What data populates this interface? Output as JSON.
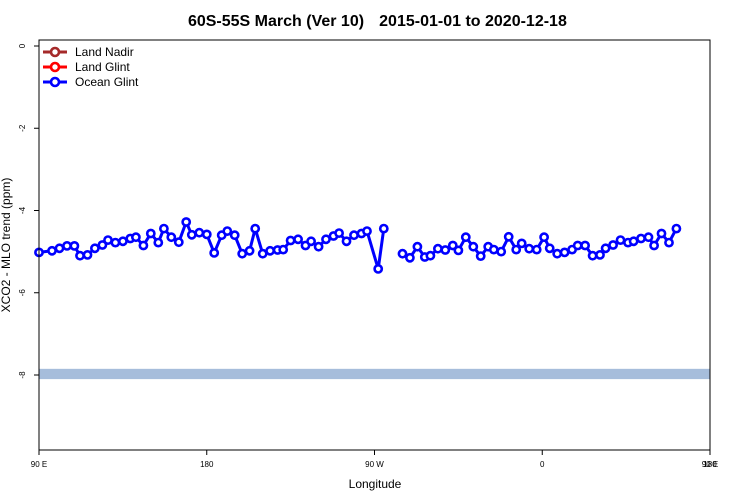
{
  "chart_data": {
    "type": "line",
    "title_left": "60S-55S March (Ver 10)",
    "title_right": "2015-01-01 to 2020-12-18",
    "xlabel": "Longitude",
    "ylabel": "XCO2 - MLO trend (ppm)",
    "xlim": [
      90,
      450
    ],
    "ylim": [
      -10,
      0
    ],
    "xticks": [
      {
        "value": 90,
        "label": "90 E"
      },
      {
        "value": 180,
        "label": "180"
      },
      {
        "value": 270,
        "label": "90 W"
      },
      {
        "value": 360,
        "label": "0"
      },
      {
        "value": 450,
        "label": "90 E"
      },
      {
        "value": 540,
        "label": "180"
      }
    ],
    "yticks": [
      {
        "value": 0,
        "label": "0"
      },
      {
        "value": -2,
        "label": "-2"
      },
      {
        "value": -4,
        "label": "-4"
      },
      {
        "value": -6,
        "label": "-6"
      },
      {
        "value": -8,
        "label": "-8"
      }
    ],
    "legend_position": "top-left",
    "series": [
      {
        "name": "Land Nadir",
        "color": "#a52a2a",
        "values": []
      },
      {
        "name": "Land Glint",
        "color": "#ff0000",
        "values": []
      },
      {
        "name": "Ocean Glint",
        "color": "#0000ff",
        "segments": [
          [
            [
              90,
              -5.02
            ],
            [
              97,
              -4.98
            ],
            [
              101,
              -4.92
            ],
            [
              105,
              -4.86
            ],
            [
              109,
              -4.86
            ],
            [
              112,
              -5.1
            ],
            [
              116,
              -5.08
            ],
            [
              120,
              -4.92
            ],
            [
              124,
              -4.84
            ],
            [
              127,
              -4.72
            ],
            [
              131,
              -4.78
            ],
            [
              135,
              -4.75
            ],
            [
              139,
              -4.68
            ],
            [
              142,
              -4.65
            ],
            [
              146,
              -4.85
            ],
            [
              150,
              -4.56
            ],
            [
              154,
              -4.78
            ],
            [
              157,
              -4.44
            ],
            [
              161,
              -4.65
            ],
            [
              165,
              -4.77
            ],
            [
              169,
              -4.28
            ],
            [
              172,
              -4.59
            ],
            [
              176,
              -4.54
            ],
            [
              180,
              -4.58
            ],
            [
              184,
              -5.03
            ],
            [
              188,
              -4.6
            ],
            [
              191,
              -4.5
            ],
            [
              195,
              -4.6
            ],
            [
              199,
              -5.05
            ],
            [
              203,
              -4.98
            ],
            [
              206,
              -4.44
            ],
            [
              210,
              -5.05
            ],
            [
              214,
              -4.98
            ],
            [
              218,
              -4.96
            ],
            [
              221,
              -4.95
            ],
            [
              225,
              -4.73
            ],
            [
              229,
              -4.7
            ],
            [
              233,
              -4.85
            ],
            [
              236,
              -4.75
            ],
            [
              240,
              -4.88
            ],
            [
              244,
              -4.7
            ],
            [
              248,
              -4.62
            ],
            [
              251,
              -4.55
            ],
            [
              255,
              -4.75
            ],
            [
              259,
              -4.6
            ],
            [
              263,
              -4.56
            ],
            [
              266,
              -4.5
            ],
            [
              272,
              -5.42
            ],
            [
              275,
              -4.44
            ]
          ],
          [
            [
              285,
              -5.05
            ],
            [
              289,
              -5.15
            ],
            [
              293,
              -4.88
            ],
            [
              297,
              -5.13
            ],
            [
              300,
              -5.1
            ],
            [
              304,
              -4.93
            ],
            [
              308,
              -4.96
            ],
            [
              312,
              -4.85
            ],
            [
              315,
              -4.97
            ],
            [
              319,
              -4.65
            ],
            [
              323,
              -4.88
            ],
            [
              327,
              -5.11
            ],
            [
              331,
              -4.88
            ],
            [
              334,
              -4.95
            ],
            [
              338,
              -5.0
            ],
            [
              342,
              -4.64
            ],
            [
              346,
              -4.95
            ],
            [
              349,
              -4.8
            ],
            [
              353,
              -4.93
            ],
            [
              357,
              -4.95
            ],
            [
              361,
              -4.65
            ],
            [
              364,
              -4.92
            ],
            [
              368,
              -5.05
            ],
            [
              372,
              -5.02
            ],
            [
              376,
              -4.95
            ],
            [
              379,
              -4.85
            ],
            [
              383,
              -4.85
            ],
            [
              387,
              -5.1
            ],
            [
              391,
              -5.08
            ],
            [
              394,
              -4.92
            ],
            [
              398,
              -4.84
            ],
            [
              402,
              -4.72
            ],
            [
              406,
              -4.78
            ],
            [
              409,
              -4.75
            ],
            [
              413,
              -4.68
            ],
            [
              417,
              -4.65
            ],
            [
              420,
              -4.85
            ],
            [
              424,
              -4.56
            ],
            [
              428,
              -4.78
            ],
            [
              432,
              -4.44
            ]
          ]
        ]
      }
    ],
    "band": {
      "y_from": -8.1,
      "y_to": -7.85,
      "color": "#a6bddb"
    },
    "grid": false
  }
}
